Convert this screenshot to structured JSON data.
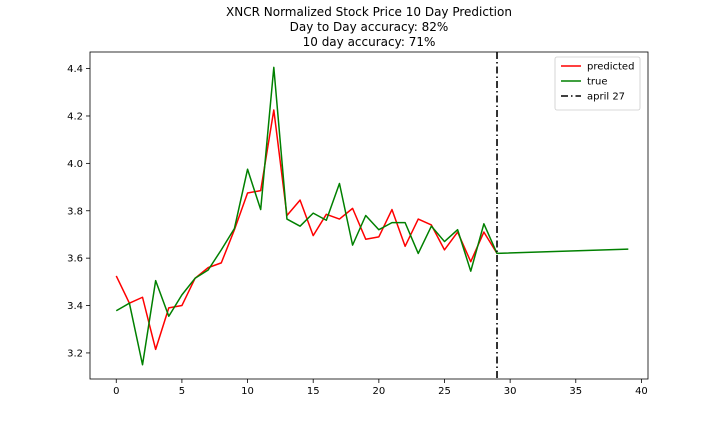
{
  "chart_data": {
    "type": "line",
    "title_lines": [
      "XNCR Normalized Stock Price 10 Day Prediction",
      "Day to Day accuracy: 82%",
      "10 day accuracy: 71%"
    ],
    "xlabel": "",
    "ylabel": "",
    "xlim": [
      -2,
      40.5
    ],
    "ylim": [
      3.09,
      4.47
    ],
    "xticks": [
      0,
      5,
      10,
      15,
      20,
      25,
      30,
      35,
      40
    ],
    "yticks": [
      3.2,
      3.4,
      3.6,
      3.8,
      4.0,
      4.2,
      4.4
    ],
    "xtick_labels": [
      "0",
      "5",
      "10",
      "15",
      "20",
      "25",
      "30",
      "35",
      "40"
    ],
    "ytick_labels": [
      "3.2",
      "3.4",
      "3.6",
      "3.8",
      "4.0",
      "4.2",
      "4.4"
    ],
    "grid": false,
    "legend_position": "top-right",
    "series": [
      {
        "name": "predicted",
        "color": "#ff0000",
        "style": "solid",
        "x": [
          0,
          1,
          2,
          3,
          4,
          5,
          6,
          7,
          8,
          9,
          10,
          11,
          12,
          13,
          14,
          15,
          16,
          17,
          18,
          19,
          20,
          21,
          22,
          23,
          24,
          25,
          26,
          27,
          28,
          29
        ],
        "values": [
          3.525,
          3.41,
          3.435,
          3.215,
          3.39,
          3.4,
          3.515,
          3.56,
          3.58,
          3.72,
          3.875,
          3.885,
          4.225,
          3.78,
          3.845,
          3.695,
          3.785,
          3.765,
          3.81,
          3.68,
          3.69,
          3.805,
          3.65,
          3.765,
          3.74,
          3.635,
          3.71,
          3.585,
          3.71,
          3.62
        ]
      },
      {
        "name": "true",
        "color": "#008000",
        "style": "solid",
        "x": [
          0,
          1,
          2,
          3,
          4,
          5,
          6,
          7,
          8,
          9,
          10,
          11,
          12,
          13,
          14,
          15,
          16,
          17,
          18,
          19,
          20,
          21,
          22,
          23,
          24,
          25,
          26,
          27,
          28,
          29,
          39
        ],
        "values": [
          3.378,
          3.41,
          3.15,
          3.505,
          3.355,
          3.445,
          3.515,
          3.55,
          3.635,
          3.725,
          3.975,
          3.805,
          4.405,
          3.765,
          3.735,
          3.79,
          3.76,
          3.915,
          3.655,
          3.78,
          3.72,
          3.75,
          3.75,
          3.62,
          3.735,
          3.67,
          3.72,
          3.545,
          3.745,
          3.62,
          3.638
        ]
      }
    ],
    "vlines": [
      {
        "name": "april 27",
        "x": 29,
        "color": "#000000",
        "style": "dashdot"
      }
    ]
  }
}
